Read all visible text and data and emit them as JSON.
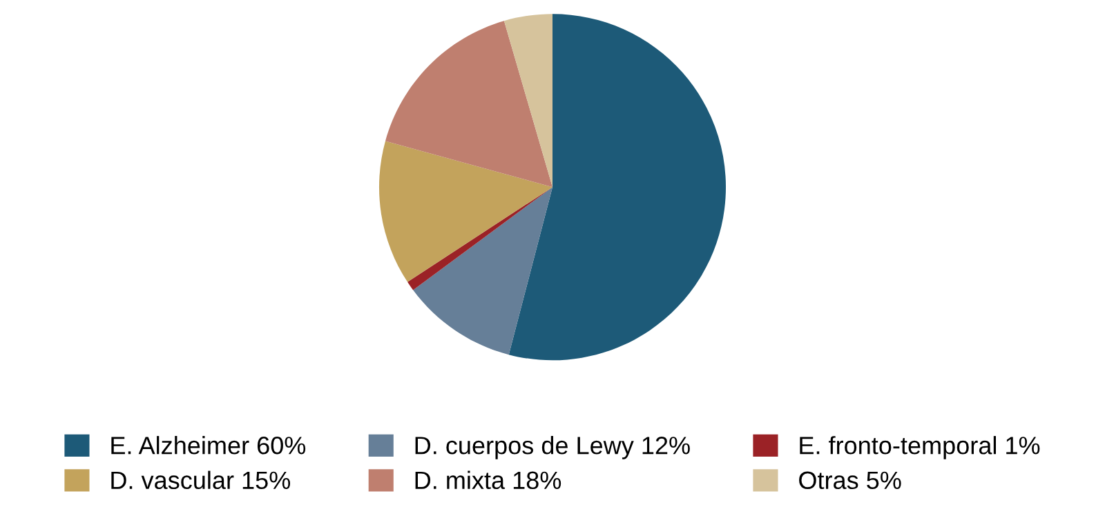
{
  "chart_data": {
    "type": "pie",
    "categories": [
      "E. Alzheimer",
      "D. cuerpos de Lewy",
      "E. fronto-temporal",
      "D. vascular",
      "D. mixta",
      "Otras"
    ],
    "values": [
      60,
      12,
      1,
      15,
      18,
      5
    ],
    "value_labels": [
      "60%",
      "12%",
      "1%",
      "15%",
      "18%",
      "5%"
    ],
    "colors": [
      "#1d5a78",
      "#667f98",
      "#9b2226",
      "#c3a35c",
      "#bf7f6f",
      "#d6c39c"
    ],
    "legend": "bottom"
  }
}
